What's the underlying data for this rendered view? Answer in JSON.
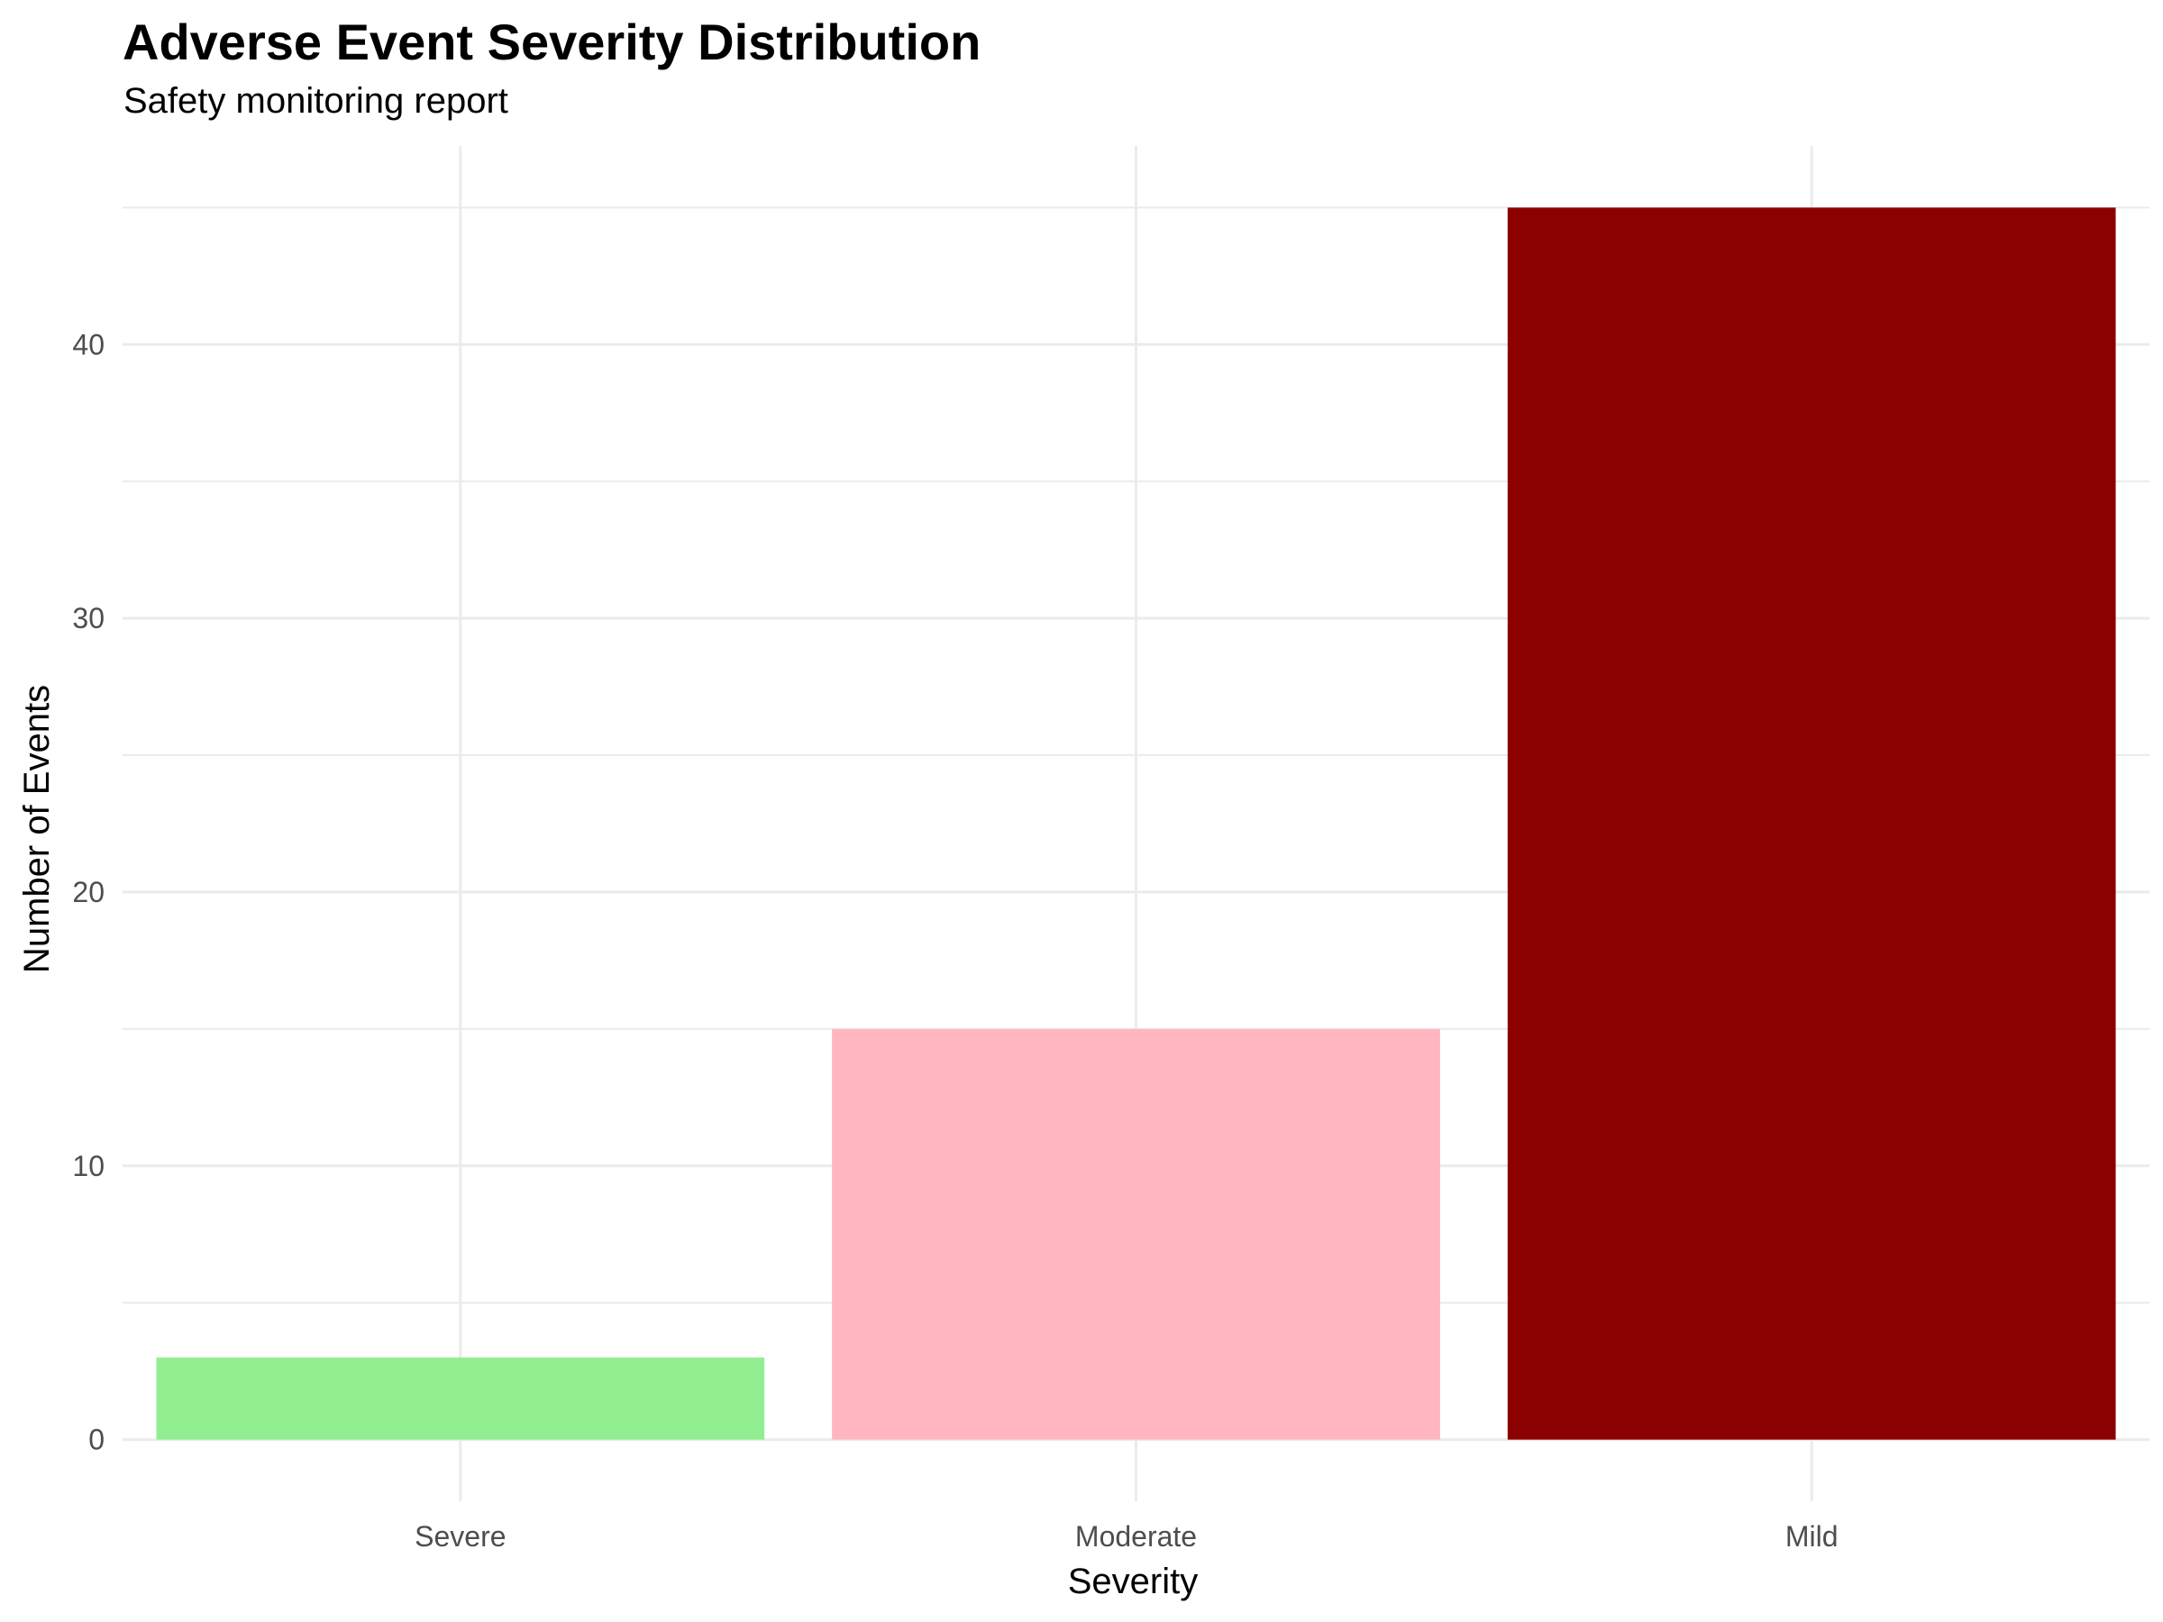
{
  "chart_data": {
    "type": "bar",
    "title": "Adverse Event Severity Distribution",
    "subtitle": "Safety monitoring report",
    "xlabel": "Severity",
    "ylabel": "Number of Events",
    "categories": [
      "Severe",
      "Moderate",
      "Mild"
    ],
    "values": [
      3,
      15,
      45
    ],
    "colors": [
      "#90EE90",
      "#FFB6C1",
      "#8B0000"
    ],
    "ylim": [
      -2.25,
      47.25
    ],
    "yticks": [
      0,
      10,
      20,
      30,
      40
    ],
    "grid": true,
    "legend": "none"
  }
}
